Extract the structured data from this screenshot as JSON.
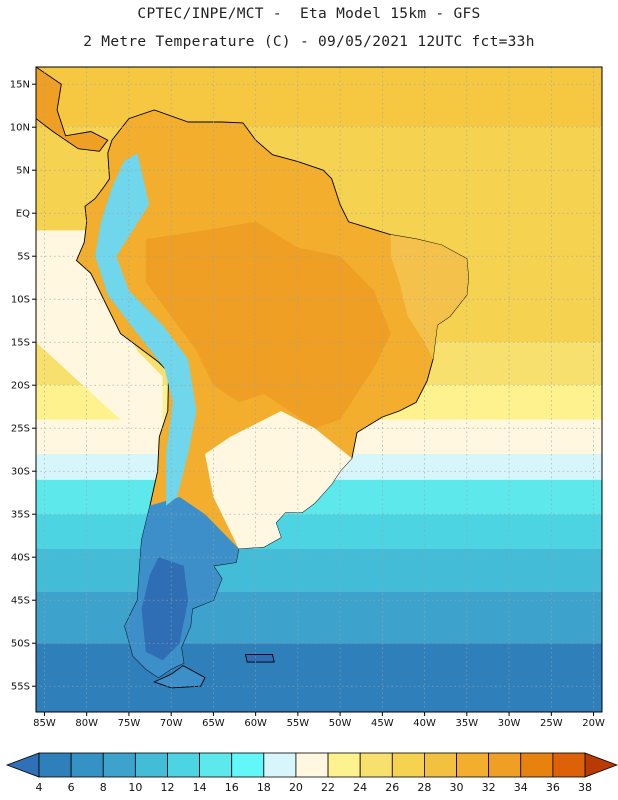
{
  "header": {
    "line1": "CPTEC/INPE/MCT -  Eta Model 15km - GFS",
    "line2": "2 Metre Temperature (C) - 09/05/2021 12UTC fct=33h"
  },
  "map": {
    "lon_range": [
      -86,
      -19
    ],
    "lat_range": [
      -58,
      17
    ],
    "lat_ticks": [
      {
        "value": 15,
        "label": "15N"
      },
      {
        "value": 10,
        "label": "10N"
      },
      {
        "value": 5,
        "label": "5N"
      },
      {
        "value": 0,
        "label": "EQ"
      },
      {
        "value": -5,
        "label": "5S"
      },
      {
        "value": -10,
        "label": "10S"
      },
      {
        "value": -15,
        "label": "15S"
      },
      {
        "value": -20,
        "label": "20S"
      },
      {
        "value": -25,
        "label": "25S"
      },
      {
        "value": -30,
        "label": "30S"
      },
      {
        "value": -35,
        "label": "35S"
      },
      {
        "value": -40,
        "label": "40S"
      },
      {
        "value": -45,
        "label": "45S"
      },
      {
        "value": -50,
        "label": "50S"
      },
      {
        "value": -55,
        "label": "55S"
      }
    ],
    "lon_ticks": [
      {
        "value": -85,
        "label": "85W"
      },
      {
        "value": -80,
        "label": "80W"
      },
      {
        "value": -75,
        "label": "75W"
      },
      {
        "value": -70,
        "label": "70W"
      },
      {
        "value": -65,
        "label": "65W"
      },
      {
        "value": -60,
        "label": "60W"
      },
      {
        "value": -55,
        "label": "55W"
      },
      {
        "value": -50,
        "label": "50W"
      },
      {
        "value": -45,
        "label": "45W"
      },
      {
        "value": -40,
        "label": "40W"
      },
      {
        "value": -35,
        "label": "35W"
      },
      {
        "value": -30,
        "label": "30W"
      },
      {
        "value": -25,
        "label": "25W"
      },
      {
        "value": -20,
        "label": "20W"
      }
    ],
    "ocean_bands": [
      {
        "from_lat": 17,
        "to_lat": 10,
        "color": "#f6c842"
      },
      {
        "from_lat": 10,
        "to_lat": -15,
        "color": "#f5d24f"
      },
      {
        "from_lat": -15,
        "to_lat": -20,
        "color": "#f8e06e"
      },
      {
        "from_lat": -20,
        "to_lat": -24,
        "color": "#fdf28e"
      },
      {
        "from_lat": -24,
        "to_lat": -28,
        "color": "#fff7e0"
      },
      {
        "from_lat": -28,
        "to_lat": -31,
        "color": "#d7f6fb"
      },
      {
        "from_lat": -31,
        "to_lat": -35,
        "color": "#5de8ec"
      },
      {
        "from_lat": -35,
        "to_lat": -39,
        "color": "#4dd4e2"
      },
      {
        "from_lat": -39,
        "to_lat": -44,
        "color": "#43bcd8"
      },
      {
        "from_lat": -44,
        "to_lat": -50,
        "color": "#3da2cc"
      },
      {
        "from_lat": -50,
        "to_lat": -58,
        "color": "#2f7fba"
      }
    ],
    "pacific_band_color": "#fff7e0",
    "land_colors": {
      "interior": "#ef9f24",
      "north": "#f2ae2c",
      "northeast": "#f4c24a",
      "south": "#fff7e0",
      "andes": "#6fd6ec",
      "patagonia": "#3c8fc8",
      "patagonia_deep": "#2f6eb5"
    }
  },
  "colorbar": {
    "levels": [
      4,
      6,
      8,
      10,
      12,
      14,
      16,
      18,
      20,
      22,
      24,
      26,
      28,
      30,
      32,
      34,
      36,
      38
    ],
    "colors": [
      "#2f7fba",
      "#3592c4",
      "#3da2cc",
      "#43bcd8",
      "#4dd4e2",
      "#5de8ec",
      "#62f7f8",
      "#d7f6fb",
      "#fff7e0",
      "#fdf28e",
      "#f8e06e",
      "#f5d24f",
      "#f2c13f",
      "#f2ae2c",
      "#ef9f24",
      "#e8820f",
      "#dd6108",
      "#c84306"
    ],
    "low_end_color": "#2f70b6",
    "high_end_color": "#b83a05"
  }
}
